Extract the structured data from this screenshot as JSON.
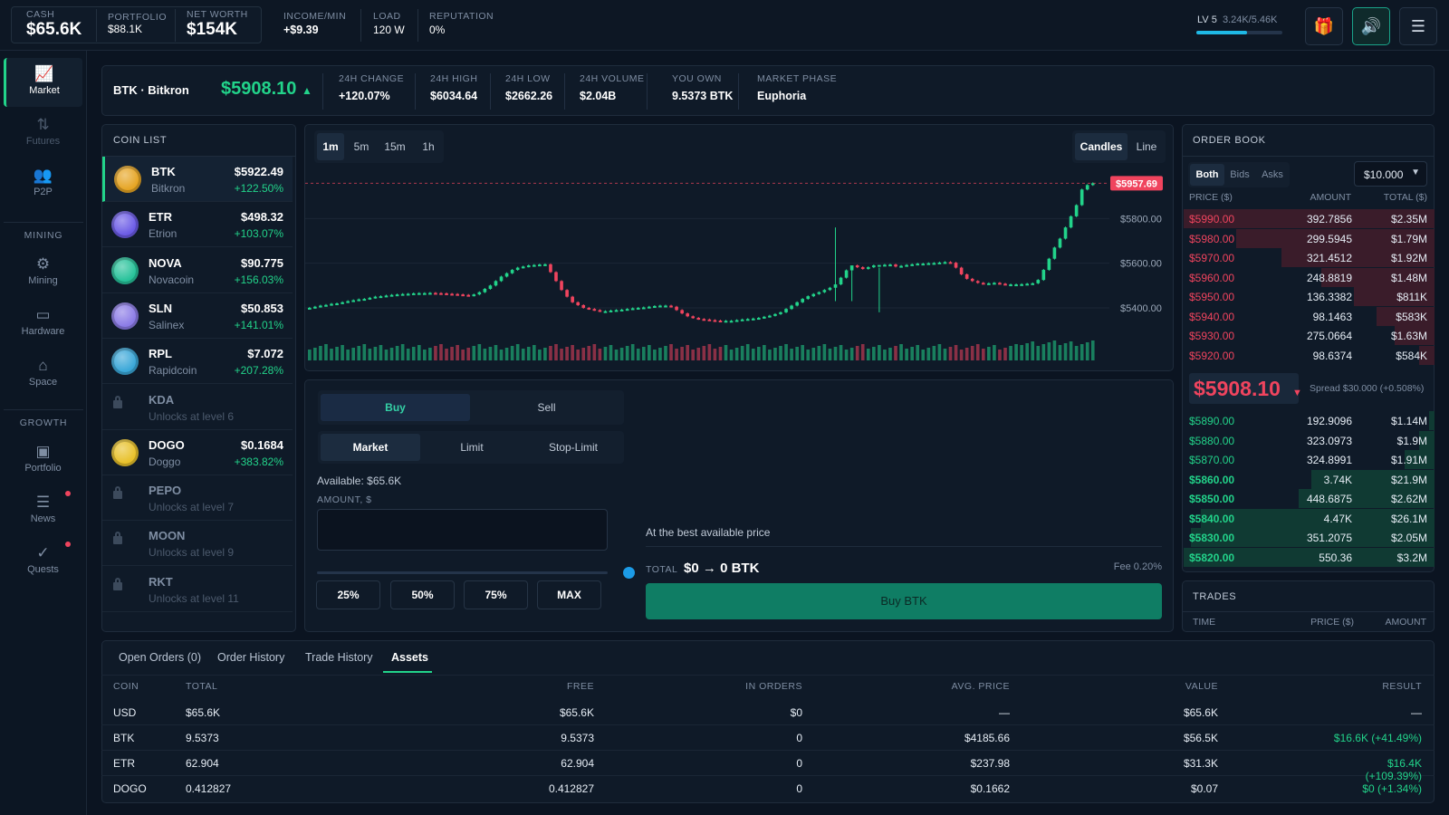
{
  "topbar": {
    "cash_label": "CASH",
    "cash": "$65.6K",
    "portfolio_label": "PORTFOLIO",
    "portfolio": "$88.1K",
    "networth_label": "NET WORTH",
    "networth": "$154K",
    "income_label": "INCOME/MIN",
    "income": "+$9.39",
    "load_label": "LOAD",
    "load": "120 W",
    "rep_label": "REPUTATION",
    "rep": "0%",
    "level": "LV 5",
    "xp": "3.24K/5.46K",
    "xp_fraction": 0.59,
    "buttons": [
      "gift-icon",
      "sound-icon",
      "menu-icon"
    ]
  },
  "sidebar": {
    "items": [
      {
        "label": "Market",
        "icon": "chart-icon"
      },
      {
        "label": "Futures",
        "icon": "arrows-icon"
      },
      {
        "label": "P2P",
        "icon": "users-icon"
      },
      {
        "label": "Mining",
        "icon": "chip-icon"
      },
      {
        "label": "Hardware",
        "icon": "hardware-icon"
      },
      {
        "label": "Space",
        "icon": "home-icon"
      },
      {
        "label": "Portfolio",
        "icon": "wallet-icon"
      },
      {
        "label": "News",
        "icon": "news-icon"
      },
      {
        "label": "Quests",
        "icon": "check-circle-icon"
      }
    ],
    "section_mining": "MINING",
    "section_growth": "GROWTH"
  },
  "ticker": {
    "pair": "BTK · Bitkron",
    "price": "$5908.10",
    "stats": [
      {
        "label": "24H CHANGE",
        "value": "+120.07%"
      },
      {
        "label": "24H HIGH",
        "value": "$6034.64"
      },
      {
        "label": "24H LOW",
        "value": "$2662.26"
      },
      {
        "label": "24H VOLUME",
        "value": "$2.04B"
      },
      {
        "label": "YOU OWN",
        "value": "9.5373 BTK"
      },
      {
        "label": "MARKET PHASE",
        "value": "Euphoria"
      }
    ]
  },
  "coinlist": {
    "title": "COIN LIST",
    "coins": [
      {
        "sym": "BTK",
        "name": "Bitkron",
        "price": "$5922.49",
        "chg": "+122.50%",
        "color": "#e6a524"
      },
      {
        "sym": "ETR",
        "name": "Etrion",
        "price": "$498.32",
        "chg": "+103.07%",
        "color": "#6b5be6"
      },
      {
        "sym": "NOVA",
        "name": "Novacoin",
        "price": "$90.775",
        "chg": "+156.03%",
        "color": "#27c29a"
      },
      {
        "sym": "SLN",
        "name": "Salinex",
        "price": "$50.853",
        "chg": "+141.01%",
        "color": "#8b7be6"
      },
      {
        "sym": "RPL",
        "name": "Rapidcoin",
        "price": "$7.072",
        "chg": "+207.28%",
        "color": "#3aa7d8"
      },
      {
        "sym": "KDA",
        "name": "Unlocks at level 6",
        "locked": true
      },
      {
        "sym": "DOGO",
        "name": "Doggo",
        "price": "$0.1684",
        "chg": "+383.82%",
        "color": "#e8c12a"
      },
      {
        "sym": "PEPO",
        "name": "Unlocks at level 7",
        "locked": true
      },
      {
        "sym": "MOON",
        "name": "Unlocks at level 9",
        "locked": true
      },
      {
        "sym": "RKT",
        "name": "Unlocks at level 11",
        "locked": true
      }
    ]
  },
  "chart": {
    "timeframes": [
      "1m",
      "5m",
      "15m",
      "1h"
    ],
    "modes": [
      "Candles",
      "Line"
    ],
    "current_label": "$5957.69"
  },
  "chart_data": {
    "type": "candlestick",
    "y_ticks": [
      "$5800.00",
      "$5600.00",
      "$5400.00"
    ],
    "close": [
      5400,
      5405,
      5410,
      5413,
      5418,
      5420,
      5425,
      5430,
      5434,
      5438,
      5440,
      5445,
      5450,
      5452,
      5455,
      5458,
      5460,
      5462,
      5463,
      5465,
      5466,
      5466,
      5467,
      5466,
      5465,
      5463,
      5462,
      5460,
      5458,
      5455,
      5460,
      5470,
      5485,
      5500,
      5520,
      5540,
      5555,
      5570,
      5580,
      5585,
      5590,
      5592,
      5594,
      5595,
      5560,
      5520,
      5480,
      5450,
      5425,
      5412,
      5400,
      5395,
      5390,
      5385,
      5385,
      5388,
      5390,
      5392,
      5395,
      5398,
      5400,
      5402,
      5405,
      5408,
      5410,
      5410,
      5405,
      5390,
      5375,
      5362,
      5355,
      5350,
      5348,
      5345,
      5343,
      5342,
      5342,
      5342,
      5345,
      5348,
      5350,
      5352,
      5355,
      5360,
      5365,
      5372,
      5380,
      5395,
      5410,
      5425,
      5440,
      5452,
      5462,
      5470,
      5480,
      5490,
      5505,
      5535,
      5568,
      5590,
      5582,
      5575,
      5582,
      5590,
      5592,
      5593,
      5594,
      5585,
      5588,
      5592,
      5595,
      5598,
      5598,
      5600,
      5601,
      5603,
      5605,
      5602,
      5580,
      5550,
      5530,
      5520,
      5512,
      5510,
      5510,
      5512,
      5508,
      5505,
      5505,
      5505,
      5506,
      5508,
      5510,
      5525,
      5570,
      5620,
      5670,
      5710,
      5760,
      5810,
      5860,
      5930,
      5950,
      5958
    ],
    "wicks": {
      "96": [
        5430,
        5760
      ],
      "99": [
        5430,
        5580
      ],
      "104": [
        5380,
        5580
      ]
    },
    "volume_present": true
  },
  "trade": {
    "sides": [
      "Buy",
      "Sell"
    ],
    "types": [
      "Market",
      "Limit",
      "Stop-Limit"
    ],
    "available": "Available: $65.6K",
    "amount_label": "AMOUNT, $",
    "slider_fraction": 0,
    "pcts": [
      "25%",
      "50%",
      "75%",
      "MAX"
    ],
    "best_price": "At the best available price",
    "total_label": "TOTAL",
    "total": "$0 → 0 BTK",
    "fee": "Fee 0.20%",
    "submit": "Buy BTK"
  },
  "orderbook": {
    "title": "ORDER BOOK",
    "filters": [
      "Both",
      "Bids",
      "Asks"
    ],
    "grouping": "$10.000",
    "headers": [
      "PRICE ($)",
      "AMOUNT",
      "TOTAL ($)"
    ],
    "asks": [
      {
        "p": "$5990.00",
        "a": "392.7856",
        "t": "$2.35M",
        "d": 1.0
      },
      {
        "p": "$5980.00",
        "a": "299.5945",
        "t": "$1.79M",
        "d": 0.79
      },
      {
        "p": "$5970.00",
        "a": "321.4512",
        "t": "$1.92M",
        "d": 0.61
      },
      {
        "p": "$5960.00",
        "a": "248.8819",
        "t": "$1.48M",
        "d": 0.45
      },
      {
        "p": "$5950.00",
        "a": "136.3382",
        "t": "$811K",
        "d": 0.32
      },
      {
        "p": "$5940.00",
        "a": "98.1463",
        "t": "$583K",
        "d": 0.23
      },
      {
        "p": "$5930.00",
        "a": "275.0664",
        "t": "$1.63M",
        "d": 0.16
      },
      {
        "p": "$5920.00",
        "a": "98.6374",
        "t": "$584K",
        "d": 0.06
      }
    ],
    "mid_price": "$5908.10",
    "spread": "Spread $30.000 (+0.508%)",
    "bids": [
      {
        "p": "$5890.00",
        "a": "192.9096",
        "t": "$1.14M",
        "d": 0.02
      },
      {
        "p": "$5880.00",
        "a": "323.0973",
        "t": "$1.9M",
        "d": 0.06
      },
      {
        "p": "$5870.00",
        "a": "324.8991",
        "t": "$1.91M",
        "d": 0.12
      },
      {
        "p": "$5860.00",
        "a": "3.74K",
        "t": "$21.9M",
        "d": 0.49
      },
      {
        "p": "$5850.00",
        "a": "448.6875",
        "t": "$2.62M",
        "d": 0.54
      },
      {
        "p": "$5840.00",
        "a": "4.47K",
        "t": "$26.1M",
        "d": 0.93
      },
      {
        "p": "$5830.00",
        "a": "351.2075",
        "t": "$2.05M",
        "d": 0.97
      },
      {
        "p": "$5820.00",
        "a": "550.36",
        "t": "$3.2M",
        "d": 1.0
      }
    ]
  },
  "trades": {
    "title": "TRADES",
    "headers": [
      "TIME",
      "PRICE ($)",
      "AMOUNT"
    ]
  },
  "bottom": {
    "tabs": [
      "Open Orders (0)",
      "Order History",
      "Trade History",
      "Assets"
    ],
    "headers": [
      "COIN",
      "TOTAL",
      "FREE",
      "IN ORDERS",
      "AVG. PRICE",
      "VALUE",
      "RESULT"
    ],
    "rows": [
      [
        "USD",
        "$65.6K",
        "$65.6K",
        "$0",
        "—",
        "$65.6K",
        "—"
      ],
      [
        "BTK",
        "9.5373",
        "9.5373",
        "0",
        "$4185.66",
        "$56.5K",
        "$16.6K (+41.49%)"
      ],
      [
        "ETR",
        "62.904",
        "62.904",
        "0",
        "$237.98",
        "$31.3K",
        "$16.4K (+109.39%)"
      ],
      [
        "DOGO",
        "0.412827",
        "0.412827",
        "0",
        "$0.1662",
        "$0.07",
        "$0 (+1.34%)"
      ]
    ]
  }
}
